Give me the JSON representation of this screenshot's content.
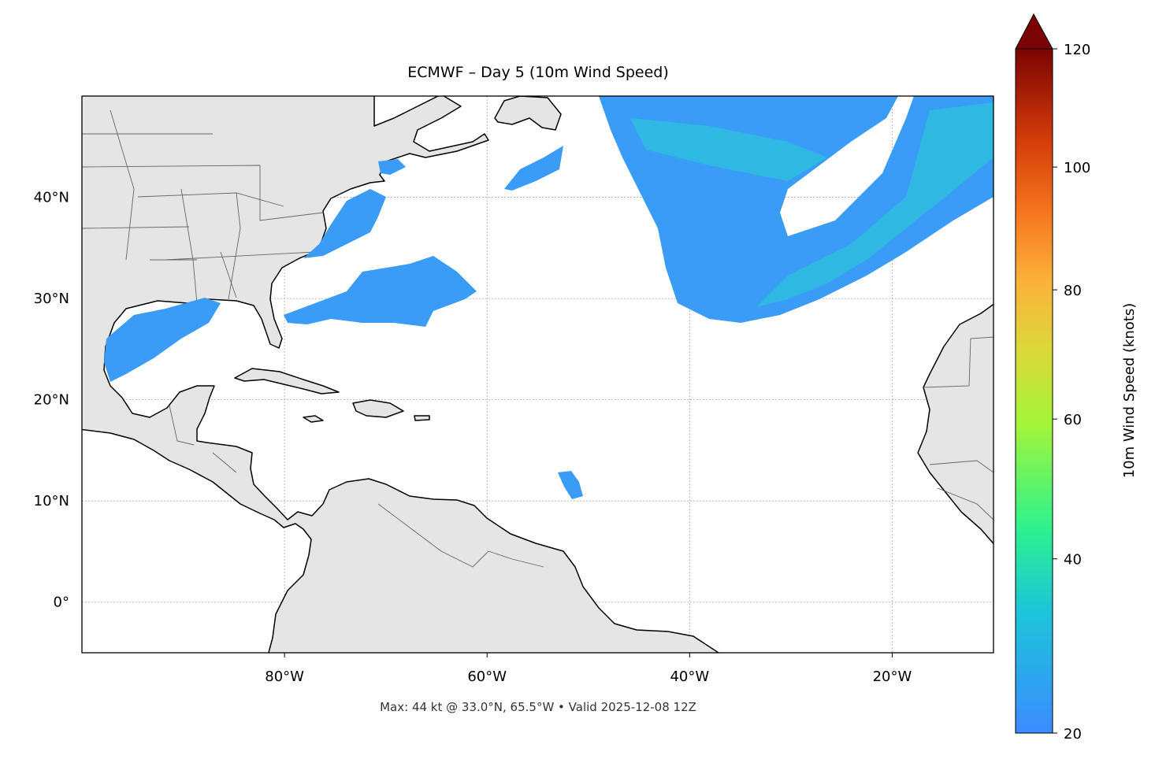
{
  "header": {
    "title": "ECMWF – Day 5 (10m Wind Speed)",
    "footnote": "Max: 44 kt @ 33.0°N, 65.5°W • Valid 2025-12-08 12Z"
  },
  "map": {
    "xlim": [
      -100,
      -10
    ],
    "ylim": [
      -5,
      50
    ],
    "xticks": [
      {
        "value": -80,
        "label": "80°W"
      },
      {
        "value": -60,
        "label": "60°W"
      },
      {
        "value": -40,
        "label": "40°W"
      },
      {
        "value": -20,
        "label": "20°W"
      }
    ],
    "yticks": [
      {
        "value": 0,
        "label": "0°"
      },
      {
        "value": 10,
        "label": "10°N"
      },
      {
        "value": 20,
        "label": "20°N"
      },
      {
        "value": 30,
        "label": "30°N"
      },
      {
        "value": 40,
        "label": "40°N"
      }
    ],
    "grid": true
  },
  "colorbar": {
    "label": "10m Wind Speed (knots)",
    "lim": [
      20,
      120
    ],
    "ticks": [
      20,
      40,
      60,
      80,
      100,
      120
    ],
    "extend": "max"
  }
}
